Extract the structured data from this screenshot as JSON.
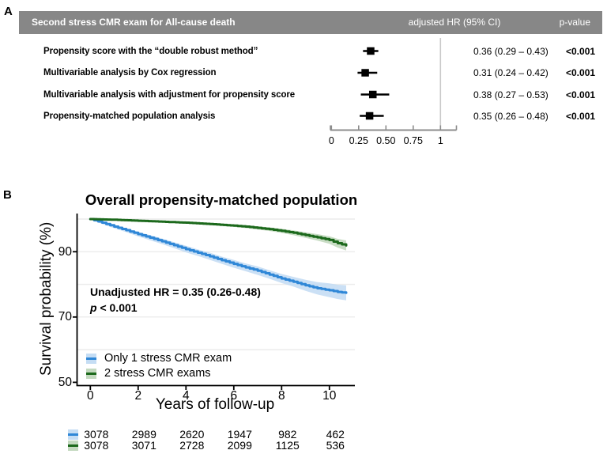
{
  "figure": {
    "panel_a_label": "A",
    "panel_b_label": "B"
  },
  "colors": {
    "header_bg": "#878787",
    "header_text": "#ffffff",
    "blue_line": "#2f87d7",
    "blue_band": "#c5ddf4",
    "green_line": "#1c691c",
    "green_band": "#c3d9bf",
    "axis_gray": "#8c8c8c",
    "ref_line": "#c9c9c9",
    "gridline": "#ececec",
    "black": "#000000"
  },
  "chart_data": [
    {
      "type": "forest",
      "title": "Second stress CMR exam for All-cause death",
      "col_headers": [
        "adjusted HR (95% CI)",
        "p-value"
      ],
      "rows": [
        {
          "label": "Propensity score with the “double robust method”",
          "hr": 0.36,
          "ci_low": 0.29,
          "ci_high": 0.43,
          "hr_text": "0.36 (0.29 – 0.43)",
          "p_value": "<0.001"
        },
        {
          "label": "Multivariable analysis by Cox regression",
          "hr": 0.31,
          "ci_low": 0.24,
          "ci_high": 0.42,
          "hr_text": "0.31 (0.24 – 0.42)",
          "p_value": "<0.001"
        },
        {
          "label": "Multivariable analysis with adjustment for propensity score",
          "hr": 0.38,
          "ci_low": 0.27,
          "ci_high": 0.53,
          "hr_text": "0.38 (0.27 – 0.53)",
          "p_value": "<0.001"
        },
        {
          "label": "Propensity-matched population analysis",
          "hr": 0.35,
          "ci_low": 0.26,
          "ci_high": 0.48,
          "hr_text": "0.35 (0.26 – 0.48)",
          "p_value": "<0.001"
        }
      ],
      "xlim": [
        0,
        1.15
      ],
      "x_ticks": [
        0,
        0.25,
        0.5,
        0.75,
        1
      ],
      "x_tick_labels": [
        "0",
        "0.25",
        "0.50",
        "0.75",
        "1"
      ],
      "reference_line": 1
    },
    {
      "type": "line",
      "subtype": "kaplan-meier",
      "title": "Overall propensity-matched population",
      "xlabel": "Years of follow-up",
      "ylabel": "Survival probability (%)",
      "xlim": [
        0,
        10.7
      ],
      "ylim": [
        50,
        100
      ],
      "x_ticks": [
        0,
        2,
        4,
        6,
        8,
        10
      ],
      "x_tick_labels": [
        "0",
        "2",
        "4",
        "6",
        "8",
        "10"
      ],
      "y_ticks": [
        50,
        70,
        90
      ],
      "y_tick_labels": [
        "50",
        "70",
        "90"
      ],
      "gridlines_y": [
        60,
        70,
        80,
        90,
        100
      ],
      "legend_position": "bottom-left",
      "annotation": {
        "line1": "Unadjusted HR = 0.35 (0.26-0.48)",
        "p_italic": "p",
        "p_rest": " < 0.001"
      },
      "series": [
        {
          "name": "Only 1 stress CMR exam",
          "color_key": "blue",
          "x": [
            0,
            0.5,
            1,
            1.5,
            2,
            2.5,
            3,
            3.5,
            4,
            4.5,
            5,
            5.5,
            6,
            6.5,
            7,
            7.5,
            8,
            8.5,
            9,
            9.5,
            10,
            10.35,
            10.7
          ],
          "y": [
            100,
            98.9,
            97.7,
            96.6,
            95.4,
            94.3,
            93.2,
            92.0,
            90.8,
            89.7,
            88.6,
            87.4,
            86.3,
            85.2,
            84.2,
            83.0,
            81.8,
            80.8,
            79.7,
            78.8,
            78.2,
            77.7,
            77.4
          ],
          "ci_half": [
            0.2,
            0.4,
            0.5,
            0.6,
            0.7,
            0.8,
            0.85,
            0.9,
            1.0,
            1.0,
            1.1,
            1.1,
            1.2,
            1.2,
            1.3,
            1.3,
            1.4,
            1.5,
            1.7,
            1.9,
            2.1,
            2.2,
            2.3
          ]
        },
        {
          "name": "2 stress CMR exams",
          "color_key": "green",
          "x": [
            0,
            1,
            2,
            3,
            4,
            5,
            6,
            6.5,
            7,
            7.5,
            8,
            8.5,
            9,
            9.5,
            10,
            10.35,
            10.7
          ],
          "y": [
            100,
            99.8,
            99.5,
            99.2,
            98.9,
            98.5,
            98.0,
            97.7,
            97.3,
            96.9,
            96.4,
            95.8,
            95.1,
            94.4,
            93.6,
            92.6,
            91.9
          ],
          "ci_half": [
            0.1,
            0.15,
            0.2,
            0.25,
            0.3,
            0.35,
            0.4,
            0.45,
            0.5,
            0.55,
            0.65,
            0.75,
            0.85,
            1.0,
            1.15,
            1.35,
            1.55
          ]
        }
      ],
      "risk_table": {
        "times": [
          0,
          2,
          4,
          6,
          8,
          10
        ],
        "rows": [
          {
            "name": "Only 1 stress CMR exam",
            "color_key": "blue",
            "values": [
              3078,
              2989,
              2620,
              1947,
              982,
              462
            ]
          },
          {
            "name": "2 stress CMR exams",
            "color_key": "green",
            "values": [
              3078,
              3071,
              2728,
              2099,
              1125,
              536
            ]
          }
        ]
      }
    }
  ]
}
